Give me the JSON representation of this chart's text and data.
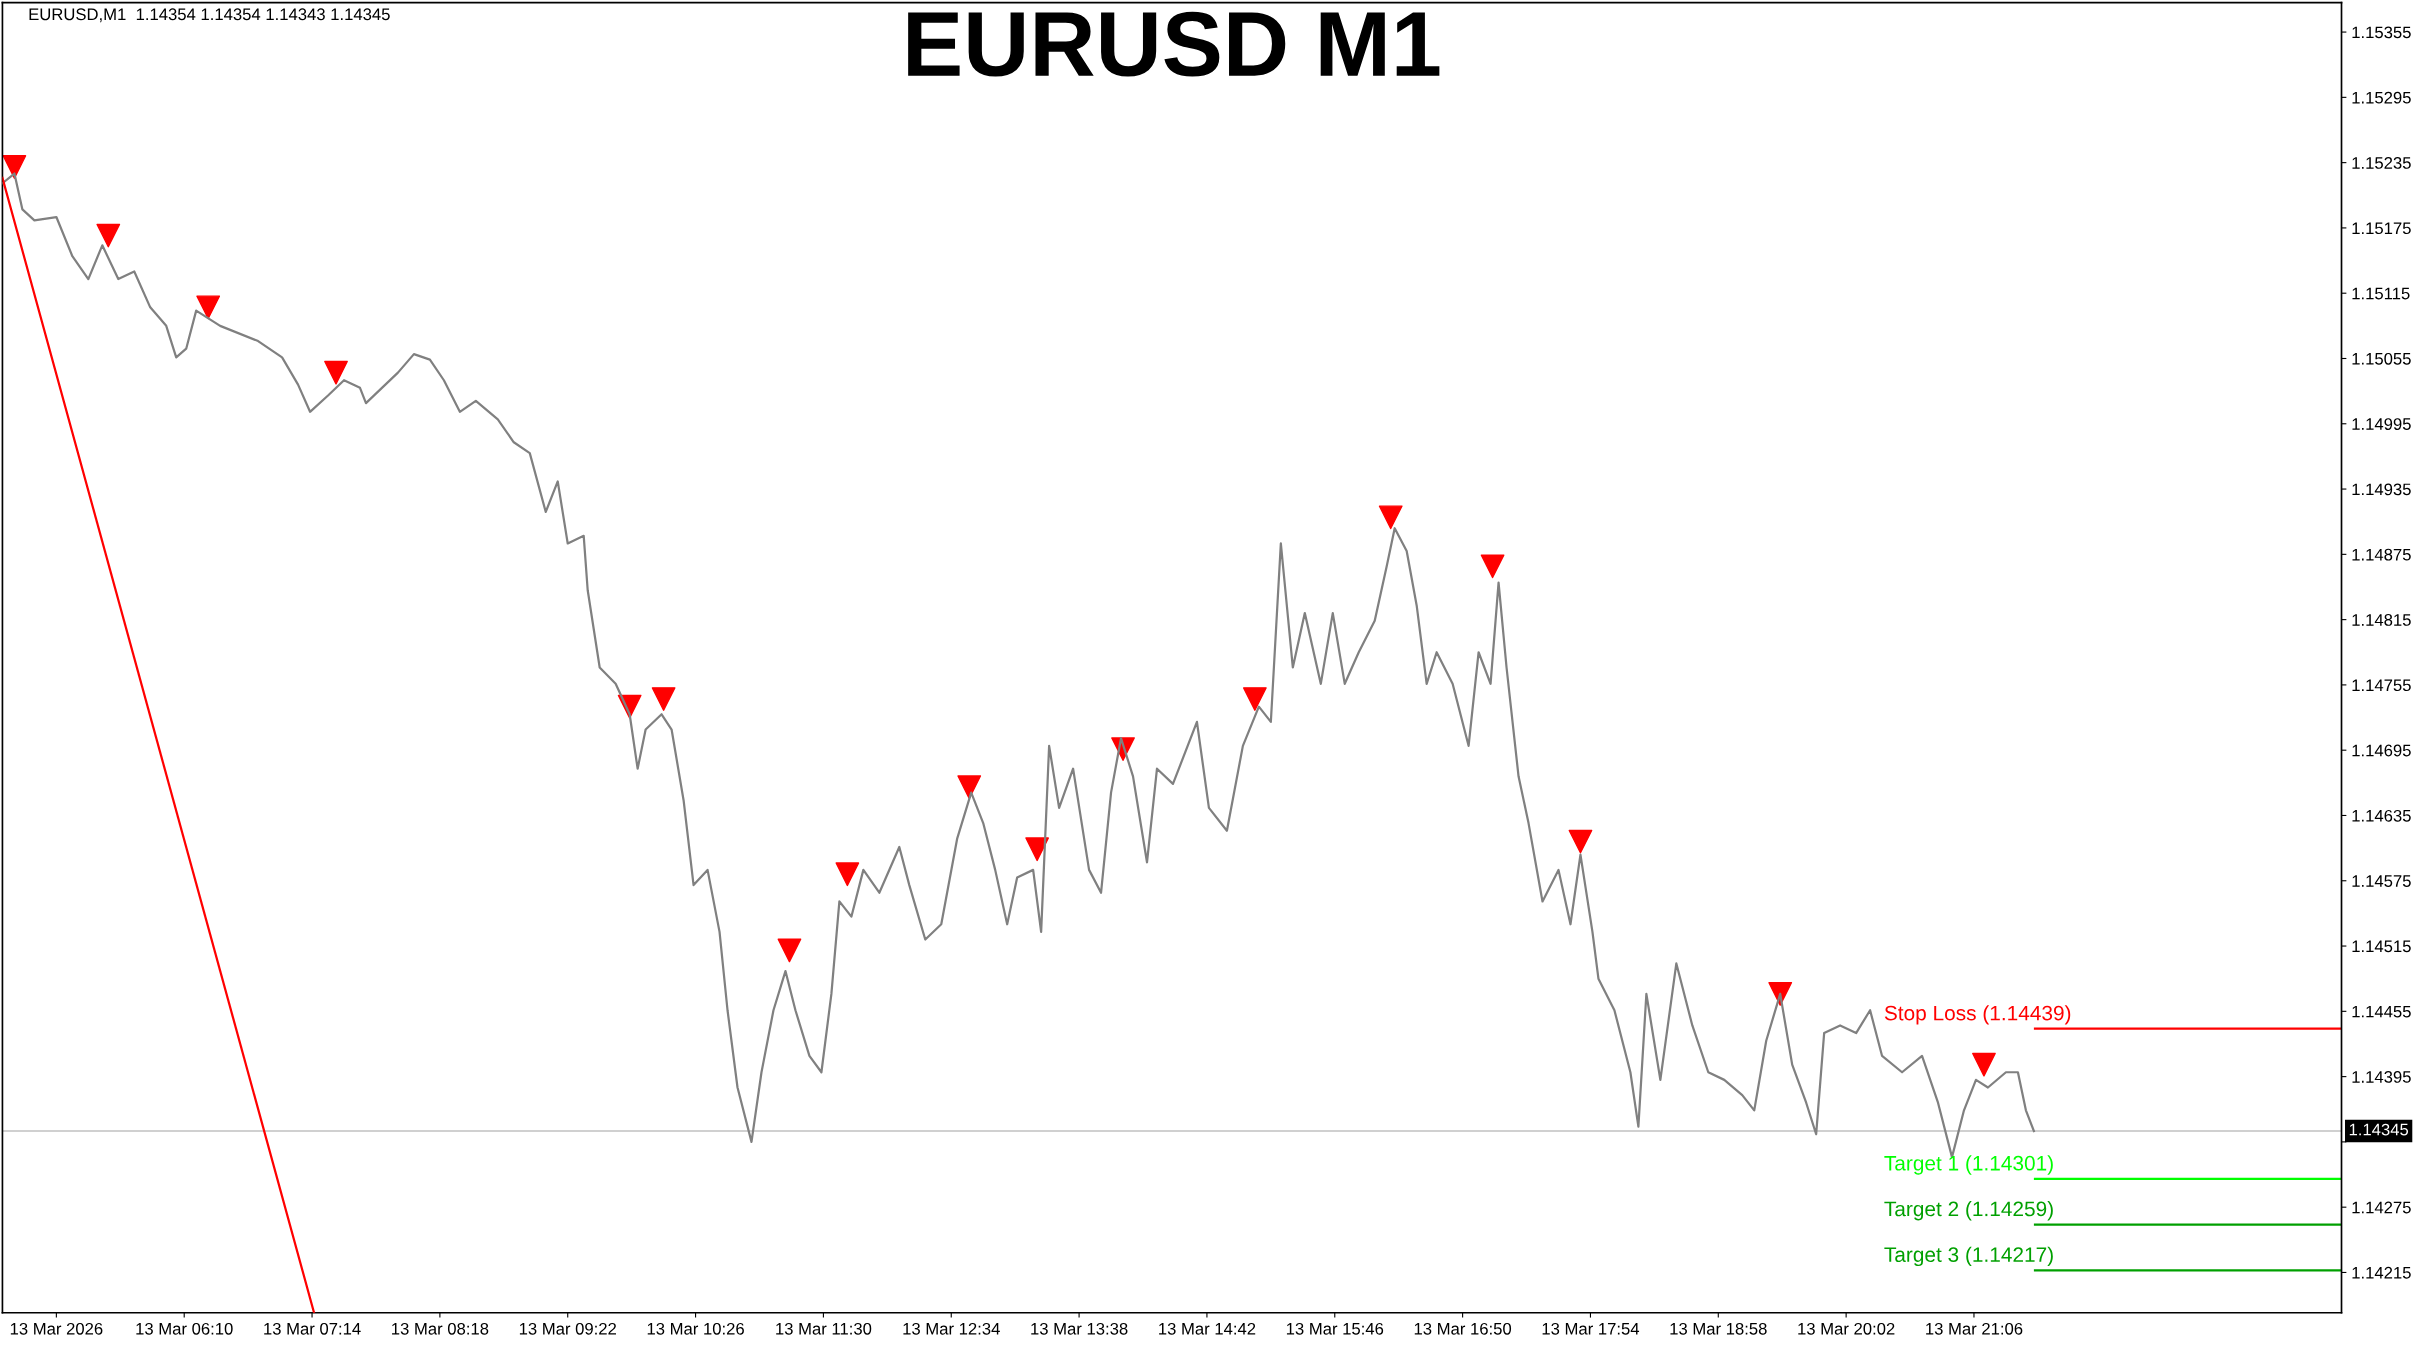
{
  "chart_data": {
    "type": "line",
    "title": "EURUSD M1",
    "annotations": [
      "EURUSD,M1  1.14354 1.14354 1.14343 1.14345"
    ],
    "xlim": [
      "2026-03-13T04:39",
      "2026-03-14T00:10"
    ],
    "xticks": [
      {
        "value": "2026-03-13T05:06",
        "label": "13 Mar 2026"
      },
      {
        "value": "2026-03-13T06:10",
        "label": "13 Mar 06:10"
      },
      {
        "value": "2026-03-13T07:14",
        "label": "13 Mar 07:14"
      },
      {
        "value": "2026-03-13T08:18",
        "label": "13 Mar 08:18"
      },
      {
        "value": "2026-03-13T09:22",
        "label": "13 Mar 09:22"
      },
      {
        "value": "2026-03-13T10:26",
        "label": "13 Mar 10:26"
      },
      {
        "value": "2026-03-13T11:30",
        "label": "13 Mar 11:30"
      },
      {
        "value": "2026-03-13T12:34",
        "label": "13 Mar 12:34"
      },
      {
        "value": "2026-03-13T13:38",
        "label": "13 Mar 13:38"
      },
      {
        "value": "2026-03-13T14:42",
        "label": "13 Mar 14:42"
      },
      {
        "value": "2026-03-13T15:46",
        "label": "13 Mar 15:46"
      },
      {
        "value": "2026-03-13T16:50",
        "label": "13 Mar 16:50"
      },
      {
        "value": "2026-03-13T17:54",
        "label": "13 Mar 17:54"
      },
      {
        "value": "2026-03-13T18:58",
        "label": "13 Mar 18:58"
      },
      {
        "value": "2026-03-13T20:02",
        "label": "13 Mar 20:02"
      },
      {
        "value": "2026-03-13T21:06",
        "label": "13 Mar 21:06"
      }
    ],
    "ylim": [
      1.14178,
      1.15382
    ],
    "yticks": [
      1.15355,
      1.15295,
      1.15235,
      1.15175,
      1.15115,
      1.15055,
      1.14995,
      1.14935,
      1.14875,
      1.14815,
      1.14755,
      1.14695,
      1.14635,
      1.14575,
      1.14515,
      1.14455,
      1.14395,
      {
        "value": 1.14335,
        "label": null
      },
      1.14275,
      1.14215
    ],
    "grid": false,
    "series": [
      {
        "color": "#808080",
        "x": [
          "2026-03-13T04:39",
          "2026-03-13T04:45",
          "2026-03-13T04:49",
          "2026-03-13T04:55",
          "2026-03-13T05:06",
          "2026-03-13T05:14",
          "2026-03-13T05:22",
          "2026-03-13T05:29",
          "2026-03-13T05:37",
          "2026-03-13T05:45",
          "2026-03-13T05:53",
          "2026-03-13T06:01",
          "2026-03-13T06:06",
          "2026-03-13T06:11",
          "2026-03-13T06:16",
          "2026-03-13T06:28",
          "2026-03-13T06:47",
          "2026-03-13T06:59",
          "2026-03-13T07:07",
          "2026-03-13T07:13",
          "2026-03-13T07:22",
          "2026-03-13T07:30",
          "2026-03-13T07:38",
          "2026-03-13T07:41",
          "2026-03-13T07:57",
          "2026-03-13T08:05",
          "2026-03-13T08:13",
          "2026-03-13T08:20",
          "2026-03-13T08:28",
          "2026-03-13T08:36",
          "2026-03-13T08:47",
          "2026-03-13T08:55",
          "2026-03-13T09:03",
          "2026-03-13T09:11",
          "2026-03-13T09:17",
          "2026-03-13T09:22",
          "2026-03-13T09:30",
          "2026-03-13T09:32",
          "2026-03-13T09:38",
          "2026-03-13T09:46",
          "2026-03-13T09:53",
          "2026-03-13T09:57",
          "2026-03-13T10:01",
          "2026-03-13T10:09",
          "2026-03-13T10:14",
          "2026-03-13T10:20",
          "2026-03-13T10:25",
          "2026-03-13T10:32",
          "2026-03-13T10:38",
          "2026-03-13T10:42",
          "2026-03-13T10:47",
          "2026-03-13T10:54",
          "2026-03-13T10:59",
          "2026-03-13T11:05",
          "2026-03-13T11:11",
          "2026-03-13T11:16",
          "2026-03-13T11:23",
          "2026-03-13T11:29",
          "2026-03-13T11:34",
          "2026-03-13T11:38",
          "2026-03-13T11:44",
          "2026-03-13T11:50",
          "2026-03-13T11:58",
          "2026-03-13T12:08",
          "2026-03-13T12:13",
          "2026-03-13T12:21",
          "2026-03-13T12:29",
          "2026-03-13T12:37",
          "2026-03-13T12:44",
          "2026-03-13T12:50",
          "2026-03-13T12:56",
          "2026-03-13T13:02",
          "2026-03-13T13:07",
          "2026-03-13T13:15",
          "2026-03-13T13:19",
          "2026-03-13T13:23",
          "2026-03-13T13:28",
          "2026-03-13T13:35",
          "2026-03-13T13:43",
          "2026-03-13T13:49",
          "2026-03-13T13:54",
          "2026-03-13T13:59",
          "2026-03-13T14:05",
          "2026-03-13T14:12",
          "2026-03-13T14:17",
          "2026-03-13T14:25",
          "2026-03-13T14:37",
          "2026-03-13T14:43",
          "2026-03-13T14:52",
          "2026-03-13T15:00",
          "2026-03-13T15:08",
          "2026-03-13T15:14",
          "2026-03-13T15:19",
          "2026-03-13T15:25",
          "2026-03-13T15:31",
          "2026-03-13T15:39",
          "2026-03-13T15:45",
          "2026-03-13T15:51",
          "2026-03-13T15:58",
          "2026-03-13T16:06",
          "2026-03-13T16:12",
          "2026-03-13T16:16",
          "2026-03-13T16:22",
          "2026-03-13T16:27",
          "2026-03-13T16:32",
          "2026-03-13T16:37",
          "2026-03-13T16:45",
          "2026-03-13T16:53",
          "2026-03-13T16:58",
          "2026-03-13T17:04",
          "2026-03-13T17:08",
          "2026-03-13T17:12",
          "2026-03-13T17:18",
          "2026-03-13T17:23",
          "2026-03-13T17:30",
          "2026-03-13T17:38",
          "2026-03-13T17:44",
          "2026-03-13T17:49",
          "2026-03-13T17:55",
          "2026-03-13T17:58",
          "2026-03-13T18:06",
          "2026-03-13T18:14",
          "2026-03-13T18:18",
          "2026-03-13T18:22",
          "2026-03-13T18:29",
          "2026-03-13T18:37",
          "2026-03-13T18:45",
          "2026-03-13T18:53",
          "2026-03-13T19:01",
          "2026-03-13T19:10",
          "2026-03-13T19:16",
          "2026-03-13T19:22",
          "2026-03-13T19:29",
          "2026-03-13T19:35",
          "2026-03-13T19:42",
          "2026-03-13T19:47",
          "2026-03-13T19:51",
          "2026-03-13T19:59",
          "2026-03-13T20:07",
          "2026-03-13T20:14",
          "2026-03-13T20:20",
          "2026-03-13T20:30",
          "2026-03-13T20:40",
          "2026-03-13T20:48",
          "2026-03-13T20:55",
          "2026-03-13T21:01",
          "2026-03-13T21:07",
          "2026-03-13T21:13",
          "2026-03-13T21:22",
          "2026-03-13T21:28",
          "2026-03-13T21:32",
          "2026-03-13T21:36"
        ],
        "values": [
          1.15216,
          1.15225,
          1.15192,
          1.15182,
          1.15185,
          1.15149,
          1.15128,
          1.15159,
          1.15128,
          1.15135,
          1.15102,
          1.15085,
          1.15056,
          1.15064,
          1.15099,
          1.15085,
          1.15071,
          1.15056,
          1.15031,
          1.15006,
          1.15021,
          1.15035,
          1.15028,
          1.15014,
          1.15042,
          1.15059,
          1.15054,
          1.15035,
          1.15006,
          1.15016,
          1.14999,
          1.14978,
          1.14968,
          1.14914,
          1.14942,
          1.14885,
          1.14892,
          1.14842,
          1.14771,
          1.14756,
          1.14728,
          1.14678,
          1.14714,
          1.14728,
          1.14714,
          1.14649,
          1.14571,
          1.14585,
          1.14528,
          1.14456,
          1.14385,
          1.14335,
          1.14399,
          1.14456,
          1.14492,
          1.14456,
          1.14414,
          1.14399,
          1.14471,
          1.14556,
          1.14542,
          1.14585,
          1.14564,
          1.14606,
          1.14571,
          1.14521,
          1.14535,
          1.14614,
          1.14656,
          1.14628,
          1.14585,
          1.14535,
          1.14578,
          1.14585,
          1.14528,
          1.14699,
          1.14642,
          1.14678,
          1.14585,
          1.14564,
          1.14656,
          1.14706,
          1.14671,
          1.14592,
          1.14678,
          1.14664,
          1.14721,
          1.14642,
          1.14621,
          1.14699,
          1.14735,
          1.14721,
          1.14885,
          1.14771,
          1.14821,
          1.14756,
          1.14821,
          1.14756,
          1.14785,
          1.14814,
          1.14864,
          1.14899,
          1.14878,
          1.14828,
          1.14756,
          1.14785,
          1.14756,
          1.14699,
          1.14785,
          1.14756,
          1.14849,
          1.14771,
          1.14671,
          1.14628,
          1.14556,
          1.14585,
          1.14535,
          1.14599,
          1.14528,
          1.14485,
          1.14456,
          1.14399,
          1.14349,
          1.14471,
          1.14392,
          1.14499,
          1.14442,
          1.14399,
          1.14392,
          1.14378,
          1.14364,
          1.14428,
          1.14471,
          1.14406,
          1.14371,
          1.14342,
          1.14435,
          1.14442,
          1.14435,
          1.14456,
          1.14414,
          1.14399,
          1.14414,
          1.14371,
          1.14321,
          1.14364,
          1.14392,
          1.14385,
          1.14399,
          1.14399,
          1.14364,
          1.14345
        ]
      },
      {
        "type": "scatter",
        "color": "#ff0000",
        "marker": "triangle",
        "x": [
          "2026-03-13T04:45",
          "2026-03-13T05:32",
          "2026-03-13T06:22",
          "2026-03-13T07:26",
          "2026-03-13T09:53",
          "2026-03-13T10:10",
          "2026-03-13T11:13",
          "2026-03-13T11:42",
          "2026-03-13T12:43",
          "2026-03-13T13:17",
          "2026-03-13T14:00",
          "2026-03-13T15:06",
          "2026-03-13T16:14",
          "2026-03-13T17:05",
          "2026-03-13T17:49",
          "2026-03-13T19:29",
          "2026-03-13T21:11"
        ],
        "values": [
          1.15231,
          1.15168,
          1.15102,
          1.15042,
          1.14735,
          1.14742,
          1.14511,
          1.14581,
          1.14661,
          1.14604,
          1.14696,
          1.14742,
          1.14909,
          1.14864,
          1.14611,
          1.14471,
          1.14406
        ]
      },
      {
        "type": "line",
        "color": "#ff0000",
        "x": [
          "2026-03-13T04:39",
          "2026-03-13T07:15"
        ],
        "values": [
          1.15221,
          1.14178
        ]
      }
    ],
    "ref_lines": [
      {
        "axis": "y",
        "value": 1.14345,
        "label": "1.14345",
        "color": "#c0c0c0"
      },
      {
        "axis": "y",
        "value": 1.14439,
        "label": "Stop Loss (1.14439)",
        "color": "#ff0000"
      },
      {
        "axis": "y",
        "value": 1.14301,
        "label": "Target 1 (1.14301)",
        "color": "#00ff00"
      },
      {
        "axis": "y",
        "value": 1.14259,
        "label": "Target 2 (1.14259)",
        "color": "#00a000"
      },
      {
        "axis": "y",
        "value": 1.14217,
        "label": "Target 3 (1.14217)",
        "color": "#00a000"
      }
    ]
  }
}
